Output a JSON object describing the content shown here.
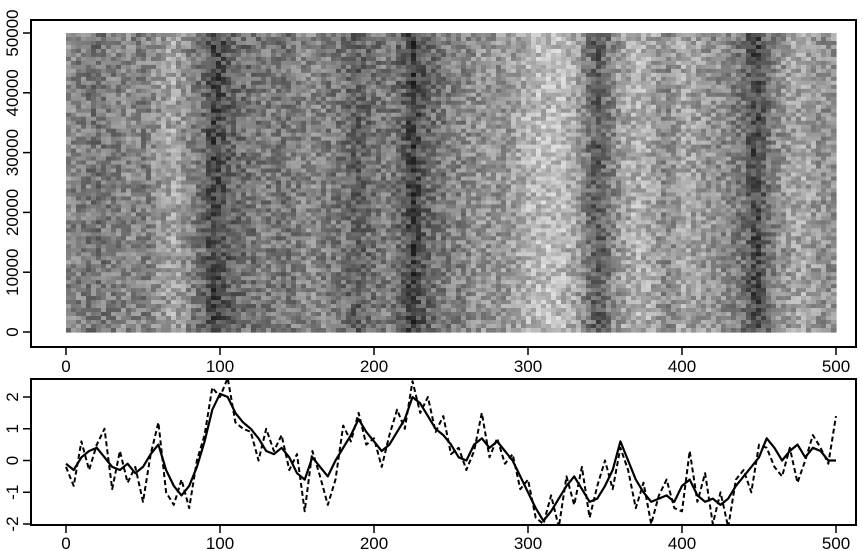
{
  "chart_data": [
    {
      "type": "heatmap",
      "title": "",
      "xlabel": "",
      "ylabel": "",
      "xlim": [
        0,
        500
      ],
      "ylim": [
        0,
        50000
      ],
      "x_ticks": [
        0,
        100,
        200,
        300,
        400,
        500
      ],
      "y_ticks": [
        0,
        10000,
        20000,
        30000,
        40000,
        50000
      ],
      "colormap": "grayscale",
      "column_profile": {
        "x": [
          0,
          10,
          20,
          30,
          40,
          50,
          60,
          70,
          80,
          90,
          95,
          100,
          110,
          120,
          130,
          140,
          150,
          160,
          170,
          180,
          190,
          200,
          210,
          220,
          225,
          230,
          240,
          250,
          260,
          270,
          280,
          290,
          300,
          310,
          320,
          330,
          340,
          345,
          350,
          360,
          370,
          380,
          390,
          400,
          410,
          420,
          430,
          440,
          448,
          455,
          460,
          470,
          480,
          490,
          500
        ],
        "value": [
          0.55,
          0.5,
          0.45,
          0.5,
          0.55,
          0.5,
          0.6,
          0.7,
          0.55,
          0.4,
          0.2,
          0.25,
          0.4,
          0.45,
          0.5,
          0.45,
          0.5,
          0.55,
          0.5,
          0.45,
          0.35,
          0.45,
          0.5,
          0.35,
          0.15,
          0.3,
          0.45,
          0.5,
          0.55,
          0.6,
          0.6,
          0.65,
          0.75,
          0.8,
          0.8,
          0.7,
          0.45,
          0.3,
          0.4,
          0.65,
          0.75,
          0.7,
          0.55,
          0.7,
          0.65,
          0.6,
          0.55,
          0.45,
          0.2,
          0.4,
          0.55,
          0.65,
          0.7,
          0.6,
          0.6
        ]
      },
      "grid": false
    },
    {
      "type": "line",
      "title": "",
      "xlabel": "",
      "ylabel": "",
      "xlim": [
        0,
        500
      ],
      "ylim": [
        -2,
        2.5
      ],
      "x_ticks": [
        0,
        100,
        200,
        300,
        400,
        500
      ],
      "y_ticks": [
        -2,
        -1,
        0,
        1,
        2
      ],
      "grid": false,
      "series": [
        {
          "style": "solid",
          "x": [
            0,
            5,
            10,
            15,
            20,
            25,
            30,
            35,
            40,
            45,
            50,
            55,
            60,
            65,
            70,
            75,
            80,
            85,
            90,
            95,
            100,
            105,
            110,
            115,
            120,
            125,
            130,
            135,
            140,
            145,
            150,
            155,
            160,
            165,
            170,
            175,
            180,
            185,
            190,
            195,
            200,
            205,
            210,
            215,
            220,
            225,
            230,
            235,
            240,
            245,
            250,
            255,
            260,
            265,
            270,
            275,
            280,
            285,
            290,
            295,
            300,
            305,
            310,
            315,
            320,
            325,
            330,
            335,
            340,
            345,
            350,
            355,
            360,
            365,
            370,
            375,
            380,
            385,
            390,
            395,
            400,
            405,
            410,
            415,
            420,
            425,
            430,
            435,
            440,
            445,
            450,
            455,
            460,
            465,
            470,
            475,
            480,
            485,
            490,
            495,
            500
          ],
          "y": [
            -0.1,
            -0.3,
            0.1,
            0.3,
            0.4,
            0.1,
            -0.2,
            -0.3,
            -0.1,
            -0.4,
            -0.2,
            0.2,
            0.5,
            -0.3,
            -0.8,
            -1.1,
            -0.8,
            -0.2,
            0.6,
            1.6,
            2.1,
            2.0,
            1.5,
            1.2,
            1.0,
            0.7,
            0.3,
            0.2,
            0.4,
            0.1,
            -0.4,
            -0.6,
            0.1,
            -0.2,
            -0.5,
            0.0,
            0.4,
            0.8,
            1.3,
            0.9,
            0.6,
            0.3,
            0.5,
            0.9,
            1.3,
            2.0,
            1.8,
            1.4,
            1.0,
            0.8,
            0.5,
            0.1,
            0.0,
            0.5,
            0.7,
            0.4,
            0.6,
            0.3,
            0.0,
            -0.5,
            -1.0,
            -1.5,
            -1.9,
            -1.6,
            -1.2,
            -0.8,
            -0.5,
            -0.9,
            -1.3,
            -1.2,
            -0.8,
            -0.3,
            0.6,
            0.0,
            -0.6,
            -1.0,
            -1.3,
            -1.2,
            -1.1,
            -1.3,
            -0.8,
            -0.6,
            -1.1,
            -1.3,
            -1.2,
            -1.4,
            -1.2,
            -0.8,
            -0.5,
            -0.2,
            0.1,
            0.7,
            0.4,
            0.0,
            0.3,
            0.5,
            0.1,
            0.4,
            0.3,
            0.0,
            0.0
          ]
        },
        {
          "style": "dashed",
          "x": [
            0,
            5,
            10,
            15,
            20,
            25,
            30,
            35,
            40,
            45,
            50,
            55,
            60,
            65,
            70,
            75,
            80,
            85,
            90,
            95,
            100,
            105,
            110,
            115,
            120,
            125,
            130,
            135,
            140,
            145,
            150,
            155,
            160,
            165,
            170,
            175,
            180,
            185,
            190,
            195,
            200,
            205,
            210,
            215,
            220,
            225,
            230,
            235,
            240,
            245,
            250,
            255,
            260,
            265,
            270,
            275,
            280,
            285,
            290,
            295,
            300,
            305,
            310,
            315,
            320,
            325,
            330,
            335,
            340,
            345,
            350,
            355,
            360,
            365,
            370,
            375,
            380,
            385,
            390,
            395,
            400,
            405,
            410,
            415,
            420,
            425,
            430,
            435,
            440,
            445,
            450,
            455,
            460,
            465,
            470,
            475,
            480,
            485,
            490,
            495,
            500
          ],
          "y": [
            -0.2,
            -0.8,
            0.6,
            -0.3,
            0.5,
            1.0,
            -0.9,
            0.3,
            -0.7,
            -0.2,
            -1.3,
            0.2,
            1.2,
            -1.0,
            -1.4,
            -0.6,
            -1.5,
            0.0,
            0.8,
            2.3,
            2.0,
            2.6,
            1.2,
            1.0,
            0.9,
            0.0,
            1.0,
            0.3,
            0.8,
            -0.3,
            0.2,
            -1.6,
            0.3,
            -0.5,
            -1.4,
            -0.6,
            1.1,
            0.6,
            1.5,
            0.5,
            0.7,
            -0.2,
            0.8,
            1.6,
            1.0,
            2.5,
            1.5,
            2.0,
            0.9,
            1.4,
            0.2,
            0.4,
            -0.3,
            0.3,
            1.5,
            0.1,
            0.7,
            -0.1,
            0.2,
            -0.9,
            -0.6,
            -1.8,
            -2.0,
            -1.1,
            -2.1,
            -0.5,
            -1.4,
            -0.2,
            -1.8,
            -0.8,
            0.0,
            -0.9,
            0.4,
            -0.3,
            -1.5,
            -0.7,
            -2.0,
            -1.1,
            -0.6,
            -1.5,
            -1.6,
            0.3,
            -1.3,
            -0.4,
            -2.0,
            -1.0,
            -2.1,
            -0.6,
            -0.3,
            -1.0,
            0.5,
            0.4,
            -0.2,
            -0.5,
            0.4,
            -0.7,
            0.0,
            0.8,
            0.4,
            -0.1,
            1.4
          ]
        }
      ]
    }
  ]
}
